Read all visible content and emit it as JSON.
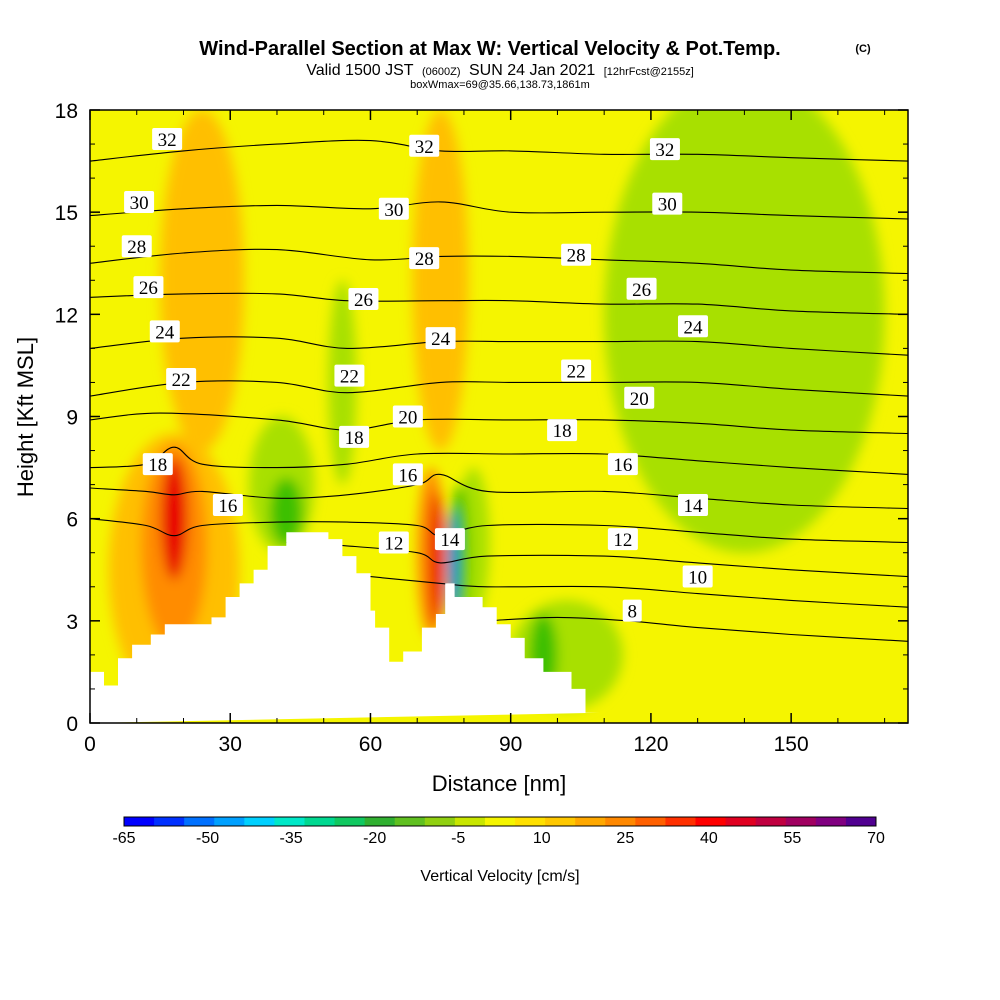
{
  "header": {
    "title": "Wind-Parallel Section at Max W: Vertical Velocity & Pot.Temp.",
    "title_tag": "(C)",
    "subtitle_valid": "Valid 1500 JST",
    "subtitle_z": "(0600Z)",
    "subtitle_date": "SUN 24 Jan 2021",
    "subtitle_fcst": "[12hrFcst@2155z]",
    "subtitle_box": "boxWmax=69@35.66,138.73,1861m"
  },
  "colors": {
    "background_field": "#f5f500",
    "terrain": "#ffffff",
    "contour": "#000000",
    "updraft_strong": "#e80000",
    "updraft_moderate": "#ff8c00",
    "updraft_weak": "#ffbf00",
    "downdraft_weak": "#a8e000",
    "downdraft_moderate": "#3cc000",
    "downdraft_strong": "#0060ff"
  },
  "chart_data": {
    "type": "heatmap",
    "title": "Wind-Parallel Section at Max W: Vertical Velocity & Pot.Temp.",
    "xlabel": "Distance [nm]",
    "ylabel": "Height [Kft MSL]",
    "xlim": [
      0,
      175
    ],
    "ylim": [
      0,
      18
    ],
    "xticks": [
      0,
      30,
      60,
      90,
      120,
      150
    ],
    "yticks": [
      0,
      3,
      6,
      9,
      12,
      15,
      18
    ],
    "colorbar": {
      "label": "Vertical Velocity [cm/s]",
      "tick_labels": [
        "-65",
        "-50",
        "-35",
        "-20",
        "-5",
        "10",
        "25",
        "40",
        "55",
        "70"
      ],
      "colors": [
        "#0000ff",
        "#0030ff",
        "#0070ff",
        "#00a0ff",
        "#00d0ff",
        "#00e8c8",
        "#00d890",
        "#10c860",
        "#30b030",
        "#60c020",
        "#90d010",
        "#c8e600",
        "#f5f500",
        "#ffe000",
        "#ffc800",
        "#ffa800",
        "#ff8800",
        "#ff6000",
        "#ff3000",
        "#ff0000",
        "#e00020",
        "#c00040",
        "#a00060",
        "#800080",
        "#500090"
      ]
    },
    "terrain_profile": {
      "x": [
        0,
        3,
        3,
        6,
        6,
        9,
        9,
        13,
        13,
        16,
        16,
        26,
        26,
        29,
        29,
        32,
        32,
        35,
        35,
        38,
        38,
        42,
        42,
        51,
        51,
        54,
        54,
        57,
        57,
        60,
        60,
        61,
        61,
        64,
        64,
        67,
        67,
        71,
        71,
        74,
        74,
        76,
        76,
        78,
        78,
        84,
        84,
        87,
        87,
        90,
        90,
        93,
        93,
        97,
        97,
        103,
        103,
        106,
        106,
        109,
        109,
        175
      ],
      "height": [
        1.5,
        1.5,
        1.1,
        1.1,
        1.9,
        1.9,
        2.3,
        2.3,
        2.6,
        2.6,
        2.9,
        2.9,
        3.1,
        3.1,
        3.7,
        3.7,
        4.1,
        4.1,
        4.5,
        4.5,
        5.2,
        5.2,
        5.6,
        5.6,
        5.4,
        5.4,
        4.9,
        4.9,
        4.4,
        4.4,
        3.3,
        3.3,
        2.8,
        2.8,
        1.8,
        1.8,
        2.1,
        2.1,
        2.8,
        2.8,
        3.2,
        3.2,
        4.1,
        4.1,
        3.7,
        3.7,
        3.4,
        3.4,
        2.9,
        2.9,
        2.5,
        2.5,
        1.9,
        1.9,
        1.5,
        1.5,
        1.0,
        1.0,
        0.3,
        0.3
      ]
    },
    "series": [
      {
        "name": "32",
        "label_x": 16.5,
        "label_y": 17.15,
        "values": [
          [
            0,
            16.5
          ],
          [
            20,
            16.8
          ],
          [
            40,
            17.0
          ],
          [
            60,
            17.1
          ],
          [
            75,
            16.8
          ],
          [
            90,
            16.8
          ],
          [
            110,
            16.7
          ],
          [
            130,
            16.7
          ],
          [
            150,
            16.6
          ],
          [
            175,
            16.5
          ]
        ]
      },
      {
        "name": "30",
        "label_x": 10.5,
        "label_y": 15.3,
        "values": [
          [
            0,
            14.9
          ],
          [
            20,
            15.1
          ],
          [
            40,
            15.2
          ],
          [
            60,
            15.1
          ],
          [
            75,
            15.3
          ],
          [
            90,
            15.0
          ],
          [
            110,
            15.0
          ],
          [
            130,
            15.0
          ],
          [
            150,
            14.9
          ],
          [
            175,
            14.8
          ]
        ]
      },
      {
        "name": "28",
        "label_x": 10,
        "label_y": 14.0,
        "values": [
          [
            0,
            13.5
          ],
          [
            20,
            13.8
          ],
          [
            40,
            13.9
          ],
          [
            60,
            13.6
          ],
          [
            75,
            13.7
          ],
          [
            90,
            13.7
          ],
          [
            110,
            13.6
          ],
          [
            130,
            13.5
          ],
          [
            150,
            13.3
          ],
          [
            175,
            13.2
          ]
        ]
      },
      {
        "name": "26",
        "label_x": 12.5,
        "label_y": 12.8,
        "values": [
          [
            0,
            12.5
          ],
          [
            20,
            12.6
          ],
          [
            40,
            12.6
          ],
          [
            55,
            12.4
          ],
          [
            75,
            12.4
          ],
          [
            90,
            12.4
          ],
          [
            110,
            12.3
          ],
          [
            130,
            12.3
          ],
          [
            150,
            12.1
          ],
          [
            175,
            12.0
          ]
        ]
      },
      {
        "name": "24",
        "label_x": 16,
        "label_y": 11.5,
        "values": [
          [
            0,
            11.0
          ],
          [
            20,
            11.3
          ],
          [
            40,
            11.3
          ],
          [
            55,
            11.0
          ],
          [
            75,
            11.2
          ],
          [
            90,
            11.2
          ],
          [
            110,
            11.2
          ],
          [
            130,
            11.2
          ],
          [
            150,
            11.0
          ],
          [
            175,
            10.8
          ]
        ]
      },
      {
        "name": "22",
        "label_x": 19.5,
        "label_y": 10.1,
        "values": [
          [
            0,
            9.6
          ],
          [
            20,
            10.0
          ],
          [
            40,
            10.0
          ],
          [
            55,
            9.7
          ],
          [
            75,
            10.0
          ],
          [
            90,
            10.0
          ],
          [
            110,
            10.0
          ],
          [
            130,
            10.0
          ],
          [
            150,
            9.8
          ],
          [
            175,
            9.6
          ]
        ]
      },
      {
        "name": "20",
        "label_x": 68,
        "label_y": 9.0,
        "values": [
          [
            0,
            8.9
          ],
          [
            15,
            9.1
          ],
          [
            40,
            8.9
          ],
          [
            55,
            8.6
          ],
          [
            70,
            8.9
          ],
          [
            90,
            8.9
          ],
          [
            110,
            8.9
          ],
          [
            130,
            8.8
          ],
          [
            150,
            8.6
          ],
          [
            175,
            8.5
          ]
        ]
      },
      {
        "name": "18",
        "label_x": 14.5,
        "label_y": 7.6,
        "values": [
          [
            0,
            7.5
          ],
          [
            12,
            7.6
          ],
          [
            18,
            8.1
          ],
          [
            24,
            7.6
          ],
          [
            40,
            7.5
          ],
          [
            55,
            7.6
          ],
          [
            70,
            7.9
          ],
          [
            90,
            7.9
          ],
          [
            110,
            7.9
          ],
          [
            130,
            7.7
          ],
          [
            150,
            7.5
          ],
          [
            175,
            7.3
          ]
        ]
      },
      {
        "name": "16",
        "label_x": 68,
        "label_y": 7.3,
        "values": [
          [
            0,
            6.9
          ],
          [
            12,
            6.8
          ],
          [
            18,
            6.7
          ],
          [
            24,
            6.8
          ],
          [
            40,
            6.6
          ],
          [
            55,
            6.7
          ],
          [
            70,
            7.0
          ],
          [
            75,
            7.3
          ],
          [
            85,
            6.8
          ],
          [
            110,
            6.8
          ],
          [
            130,
            6.6
          ],
          [
            150,
            6.4
          ],
          [
            175,
            6.3
          ]
        ]
      },
      {
        "name": "14",
        "label_x": 129,
        "label_y": 6.4,
        "values": [
          [
            0,
            6.0
          ],
          [
            12,
            5.8
          ],
          [
            18,
            5.5
          ],
          [
            24,
            5.8
          ],
          [
            40,
            5.9
          ],
          [
            55,
            5.9
          ],
          [
            70,
            5.8
          ],
          [
            75,
            5.5
          ],
          [
            85,
            5.8
          ],
          [
            110,
            5.8
          ],
          [
            130,
            5.6
          ],
          [
            150,
            5.4
          ],
          [
            175,
            5.3
          ]
        ]
      },
      {
        "name": "12",
        "label_x": 65,
        "label_y": 5.3,
        "values": [
          [
            42,
            5.3
          ],
          [
            55,
            5.2
          ],
          [
            70,
            5.0
          ],
          [
            75,
            4.7
          ],
          [
            85,
            4.9
          ],
          [
            110,
            4.9
          ],
          [
            130,
            4.7
          ],
          [
            150,
            4.5
          ],
          [
            175,
            4.3
          ]
        ]
      },
      {
        "name": "10",
        "label_x": 130,
        "label_y": 4.3,
        "values": [
          [
            60,
            4.3
          ],
          [
            75,
            4.1
          ],
          [
            85,
            4.0
          ],
          [
            110,
            4.0
          ],
          [
            130,
            3.8
          ],
          [
            150,
            3.6
          ],
          [
            175,
            3.4
          ]
        ]
      },
      {
        "name": "8",
        "label_x": 116,
        "label_y": 3.3,
        "values": [
          [
            85,
            3.0
          ],
          [
            100,
            3.1
          ],
          [
            115,
            3.0
          ],
          [
            130,
            2.8
          ],
          [
            150,
            2.6
          ],
          [
            175,
            2.4
          ]
        ]
      }
    ],
    "contour_labels": [
      {
        "text": "32",
        "x": 16.5,
        "y": 17.15
      },
      {
        "text": "32",
        "x": 71.5,
        "y": 16.95
      },
      {
        "text": "32",
        "x": 123,
        "y": 16.85
      },
      {
        "text": "30",
        "x": 10.5,
        "y": 15.3
      },
      {
        "text": "30",
        "x": 65,
        "y": 15.1
      },
      {
        "text": "30",
        "x": 123.5,
        "y": 15.25
      },
      {
        "text": "28",
        "x": 10,
        "y": 14.0
      },
      {
        "text": "28",
        "x": 71.5,
        "y": 13.65
      },
      {
        "text": "28",
        "x": 104,
        "y": 13.75
      },
      {
        "text": "26",
        "x": 12.5,
        "y": 12.8
      },
      {
        "text": "26",
        "x": 58.5,
        "y": 12.45
      },
      {
        "text": "26",
        "x": 118,
        "y": 12.75
      },
      {
        "text": "24",
        "x": 16,
        "y": 11.5
      },
      {
        "text": "24",
        "x": 75,
        "y": 11.3
      },
      {
        "text": "24",
        "x": 129,
        "y": 11.65
      },
      {
        "text": "22",
        "x": 19.5,
        "y": 10.1
      },
      {
        "text": "22",
        "x": 55.5,
        "y": 10.2
      },
      {
        "text": "22",
        "x": 104,
        "y": 10.35
      },
      {
        "text": "20",
        "x": 68,
        "y": 9.0
      },
      {
        "text": "20",
        "x": 117.5,
        "y": 9.55
      },
      {
        "text": "18",
        "x": 14.5,
        "y": 7.6
      },
      {
        "text": "18",
        "x": 56.5,
        "y": 8.4
      },
      {
        "text": "18",
        "x": 101,
        "y": 8.6
      },
      {
        "text": "16",
        "x": 29.5,
        "y": 6.4
      },
      {
        "text": "16",
        "x": 68,
        "y": 7.3
      },
      {
        "text": "16",
        "x": 114,
        "y": 7.6
      },
      {
        "text": "14",
        "x": 77,
        "y": 5.4
      },
      {
        "text": "14",
        "x": 129,
        "y": 6.4
      },
      {
        "text": "12",
        "x": 65,
        "y": 5.3
      },
      {
        "text": "12",
        "x": 114,
        "y": 5.4
      },
      {
        "text": "10",
        "x": 130,
        "y": 4.3
      },
      {
        "text": "8",
        "x": 116,
        "y": 3.3
      }
    ],
    "field_blobs": [
      {
        "level": "updraft_weak",
        "cx": 18,
        "cy": 4.5,
        "rx": 14,
        "ry": 4.0
      },
      {
        "level": "updraft_moderate",
        "cx": 18,
        "cy": 5.2,
        "rx": 7,
        "ry": 3.0
      },
      {
        "level": "updraft_strong",
        "cx": 18,
        "cy": 6.0,
        "rx": 2.8,
        "ry": 1.8
      },
      {
        "level": "updraft_weak",
        "cx": 24,
        "cy": 13.0,
        "rx": 9,
        "ry": 5.0
      },
      {
        "level": "updraft_weak",
        "cx": 75,
        "cy": 13.0,
        "rx": 6,
        "ry": 5.0
      },
      {
        "level": "updraft_moderate",
        "cx": 73,
        "cy": 5.0,
        "rx": 3.0,
        "ry": 2.5
      },
      {
        "level": "updraft_strong",
        "cx": 74,
        "cy": 4.8,
        "rx": 1.5,
        "ry": 2.0
      },
      {
        "level": "downdraft_weak",
        "cx": 140,
        "cy": 12.0,
        "rx": 30,
        "ry": 7.0
      },
      {
        "level": "downdraft_weak",
        "cx": 41,
        "cy": 7.0,
        "rx": 7,
        "ry": 2.0
      },
      {
        "level": "downdraft_moderate",
        "cx": 42,
        "cy": 6.2,
        "rx": 3.5,
        "ry": 1.0
      },
      {
        "level": "downdraft_weak",
        "cx": 54,
        "cy": 10.0,
        "rx": 3.0,
        "ry": 3.0
      },
      {
        "level": "downdraft_weak",
        "cx": 82,
        "cy": 5.3,
        "rx": 3.5,
        "ry": 2.2
      },
      {
        "level": "downdraft_moderate",
        "cx": 79,
        "cy": 5.0,
        "rx": 2.0,
        "ry": 2.0
      },
      {
        "level": "downdraft_strong",
        "cx": 77.5,
        "cy": 4.7,
        "rx": 0.9,
        "ry": 1.6
      },
      {
        "level": "downdraft_weak",
        "cx": 102,
        "cy": 2.0,
        "rx": 12,
        "ry": 1.6
      },
      {
        "level": "downdraft_moderate",
        "cx": 97,
        "cy": 2.0,
        "rx": 3.0,
        "ry": 1.2
      }
    ]
  }
}
